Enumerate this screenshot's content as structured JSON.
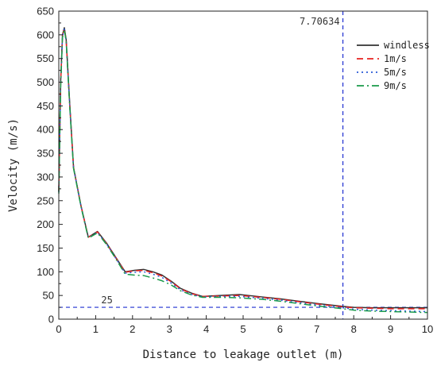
{
  "chart_data": {
    "type": "line",
    "xlabel": "Distance to leakage outlet (m)",
    "ylabel": "Velocity (m/s)",
    "xlim": [
      0,
      10
    ],
    "ylim": [
      0,
      650
    ],
    "xticks": [
      0,
      1,
      2,
      3,
      4,
      5,
      6,
      7,
      8,
      9,
      10
    ],
    "yticks": [
      0,
      50,
      100,
      150,
      200,
      250,
      300,
      350,
      400,
      450,
      500,
      550,
      600,
      650
    ],
    "grid": false,
    "legend_position": "top-right",
    "series": [
      {
        "name": "windless",
        "color": "#333333",
        "style": "solid",
        "x": [
          0,
          0.05,
          0.1,
          0.15,
          0.2,
          0.3,
          0.4,
          0.6,
          0.8,
          1.05,
          1.3,
          1.55,
          1.8,
          2.05,
          2.3,
          2.55,
          2.8,
          3.05,
          3.3,
          3.6,
          3.9,
          4.4,
          4.9,
          5.5,
          6,
          6.5,
          7,
          7.7,
          8,
          8.5,
          9,
          9.5,
          10
        ],
        "y": [
          270,
          500,
          600,
          615,
          590,
          450,
          320,
          240,
          173,
          185,
          160,
          130,
          100,
          103,
          105,
          100,
          93,
          80,
          65,
          55,
          48,
          50,
          52,
          47,
          43,
          38,
          33,
          27,
          25,
          24,
          24,
          24,
          24
        ]
      },
      {
        "name": "1m/s",
        "color": "#e8201e",
        "style": "dashed",
        "x": [
          0,
          0.05,
          0.1,
          0.15,
          0.2,
          0.3,
          0.4,
          0.6,
          0.8,
          1.05,
          1.3,
          1.55,
          1.8,
          2.05,
          2.3,
          2.55,
          2.8,
          3.05,
          3.3,
          3.6,
          3.9,
          4.4,
          4.9,
          5.5,
          6,
          6.5,
          7,
          7.7,
          8,
          8.5,
          9,
          9.5,
          10
        ],
        "y": [
          270,
          495,
          598,
          613,
          588,
          448,
          320,
          240,
          173,
          184,
          159,
          129,
          99,
          102,
          103,
          98,
          91,
          79,
          64,
          54,
          48,
          49,
          50,
          46,
          42,
          37,
          32,
          26,
          24,
          23,
          22,
          22,
          22
        ]
      },
      {
        "name": "5m/s",
        "color": "#2a5bd7",
        "style": "dotted",
        "x": [
          0,
          0.05,
          0.1,
          0.15,
          0.2,
          0.3,
          0.4,
          0.6,
          0.8,
          1.05,
          1.3,
          1.55,
          1.8,
          2.05,
          2.3,
          2.55,
          2.8,
          3.05,
          3.3,
          3.6,
          3.9,
          4.4,
          4.9,
          5.5,
          6,
          6.5,
          7,
          7.7,
          8,
          8.5,
          9,
          9.5,
          10
        ],
        "y": [
          268,
          492,
          596,
          612,
          587,
          446,
          319,
          239,
          172,
          183,
          158,
          128,
          97,
          99,
          100,
          95,
          88,
          76,
          62,
          52,
          47,
          48,
          48,
          44,
          40,
          35,
          30,
          24,
          21,
          19,
          18,
          17,
          16
        ]
      },
      {
        "name": "9m/s",
        "color": "#1a9a4a",
        "style": "dashdot",
        "x": [
          0,
          0.05,
          0.1,
          0.15,
          0.2,
          0.3,
          0.4,
          0.6,
          0.8,
          1.05,
          1.3,
          1.55,
          1.8,
          2.05,
          2.3,
          2.55,
          2.8,
          3.05,
          3.3,
          3.6,
          3.9,
          4.4,
          4.9,
          5.5,
          6,
          6.5,
          7,
          7.7,
          8,
          8.5,
          9,
          9.5,
          10
        ],
        "y": [
          265,
          488,
          594,
          611,
          586,
          444,
          318,
          238,
          171,
          182,
          157,
          127,
          95,
          93,
          92,
          87,
          81,
          72,
          60,
          51,
          46,
          46,
          45,
          42,
          38,
          33,
          28,
          22,
          19,
          17,
          16,
          15,
          14
        ]
      }
    ],
    "reference_lines": [
      {
        "orientation": "vertical",
        "value": 7.70634,
        "label": "7.70634",
        "color": "#1f2fd0"
      },
      {
        "orientation": "horizontal",
        "value": 25,
        "label": "25",
        "color": "#1f2fd0"
      }
    ]
  }
}
